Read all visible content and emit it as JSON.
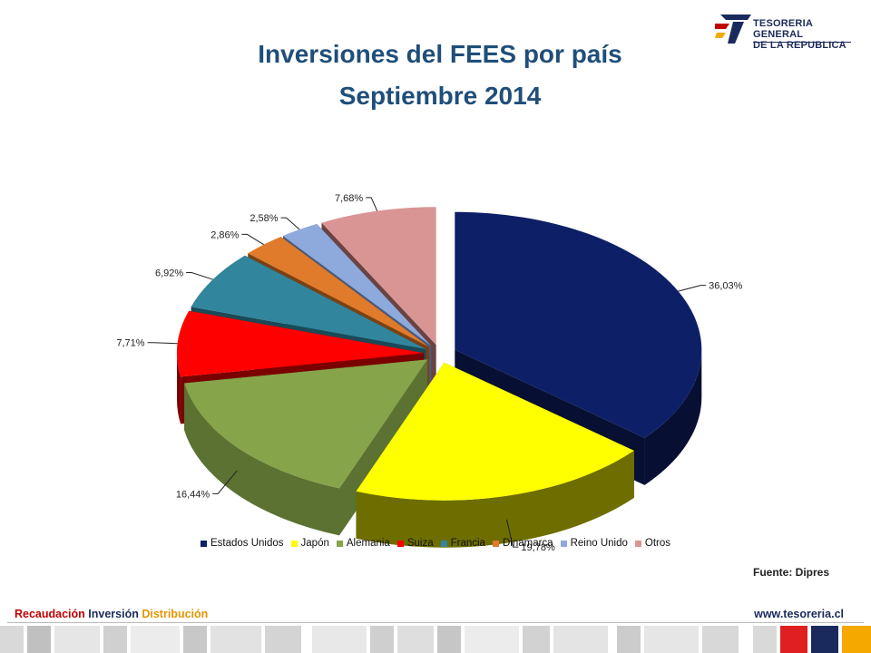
{
  "logo": {
    "line1": "TESORERIA GENERAL",
    "line2": "DE LA REPUBLICA"
  },
  "title": {
    "line1": "Inversiones del FEES por país",
    "line2": "Septiembre 2014"
  },
  "chart_data": {
    "type": "pie",
    "title": "Inversiones del FEES por país Septiembre 2014",
    "exploded": true,
    "legend_position": "bottom",
    "slices": [
      {
        "name": "Estados Unidos",
        "value": 36.03,
        "label": "36,03%",
        "color": "#0d1f66",
        "side": "#070f33"
      },
      {
        "name": "Japón",
        "value": 19.78,
        "label": "19,78%",
        "color": "#ffff00",
        "side": "#6e6e00"
      },
      {
        "name": "Alemania",
        "value": 16.44,
        "label": "16,44%",
        "color": "#86a44a",
        "side": "#5b7232"
      },
      {
        "name": "Suiza",
        "value": 7.71,
        "label": "7,71%",
        "color": "#ff0000",
        "side": "#7a0000"
      },
      {
        "name": "Francia",
        "value": 6.92,
        "label": "6,92%",
        "color": "#31859c",
        "side": "#1a4a57"
      },
      {
        "name": "Dinamarca",
        "value": 2.86,
        "label": "2,86%",
        "color": "#e07b2b",
        "side": "#7a4213"
      },
      {
        "name": "Reino Unido",
        "value": 2.58,
        "label": "2,58%",
        "color": "#8ea9db",
        "side": "#4a5a7a"
      },
      {
        "name": "Otros",
        "value": 7.68,
        "label": "7,68%",
        "color": "#d99594",
        "side": "#6a4343"
      }
    ]
  },
  "source": "Fuente: Dipres",
  "footer": {
    "word1": "Recaudación",
    "word2": "Inversión",
    "word3": "Distribución",
    "word1_color": "#c00000",
    "word2_color": "#1b2a5c",
    "word3_color": "#e69500",
    "url": "www.tesoreria.cl"
  }
}
